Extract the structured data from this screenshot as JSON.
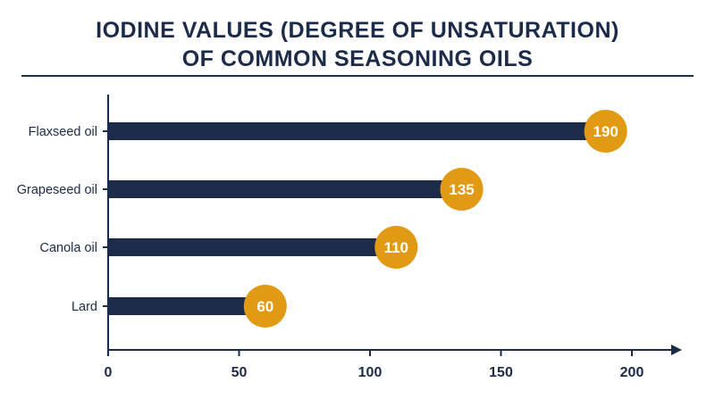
{
  "colors": {
    "bar": "#1c2b4a",
    "badge": "#e09a14",
    "badge_text": "#ffffff",
    "axis": "#1c2b4a",
    "title": "#1c2b4a"
  },
  "chart_data": {
    "type": "bar",
    "orientation": "horizontal",
    "title_lines": [
      "IODINE VALUES (DEGREE OF UNSATURATION)",
      "OF COMMON SEASONING OILS"
    ],
    "categories": [
      "Flaxseed oil",
      "Grapeseed oil",
      "Canola oil",
      "Lard"
    ],
    "values": [
      190,
      135,
      110,
      60
    ],
    "data_labels": [
      "190",
      "135",
      "110",
      "60"
    ],
    "xlabel": "",
    "ylabel": "",
    "xlim": [
      0,
      200
    ],
    "xticks": [
      0,
      50,
      100,
      150,
      200
    ],
    "xtick_labels": [
      "0",
      "50",
      "100",
      "150",
      "200"
    ],
    "grid": false,
    "legend": "none"
  }
}
